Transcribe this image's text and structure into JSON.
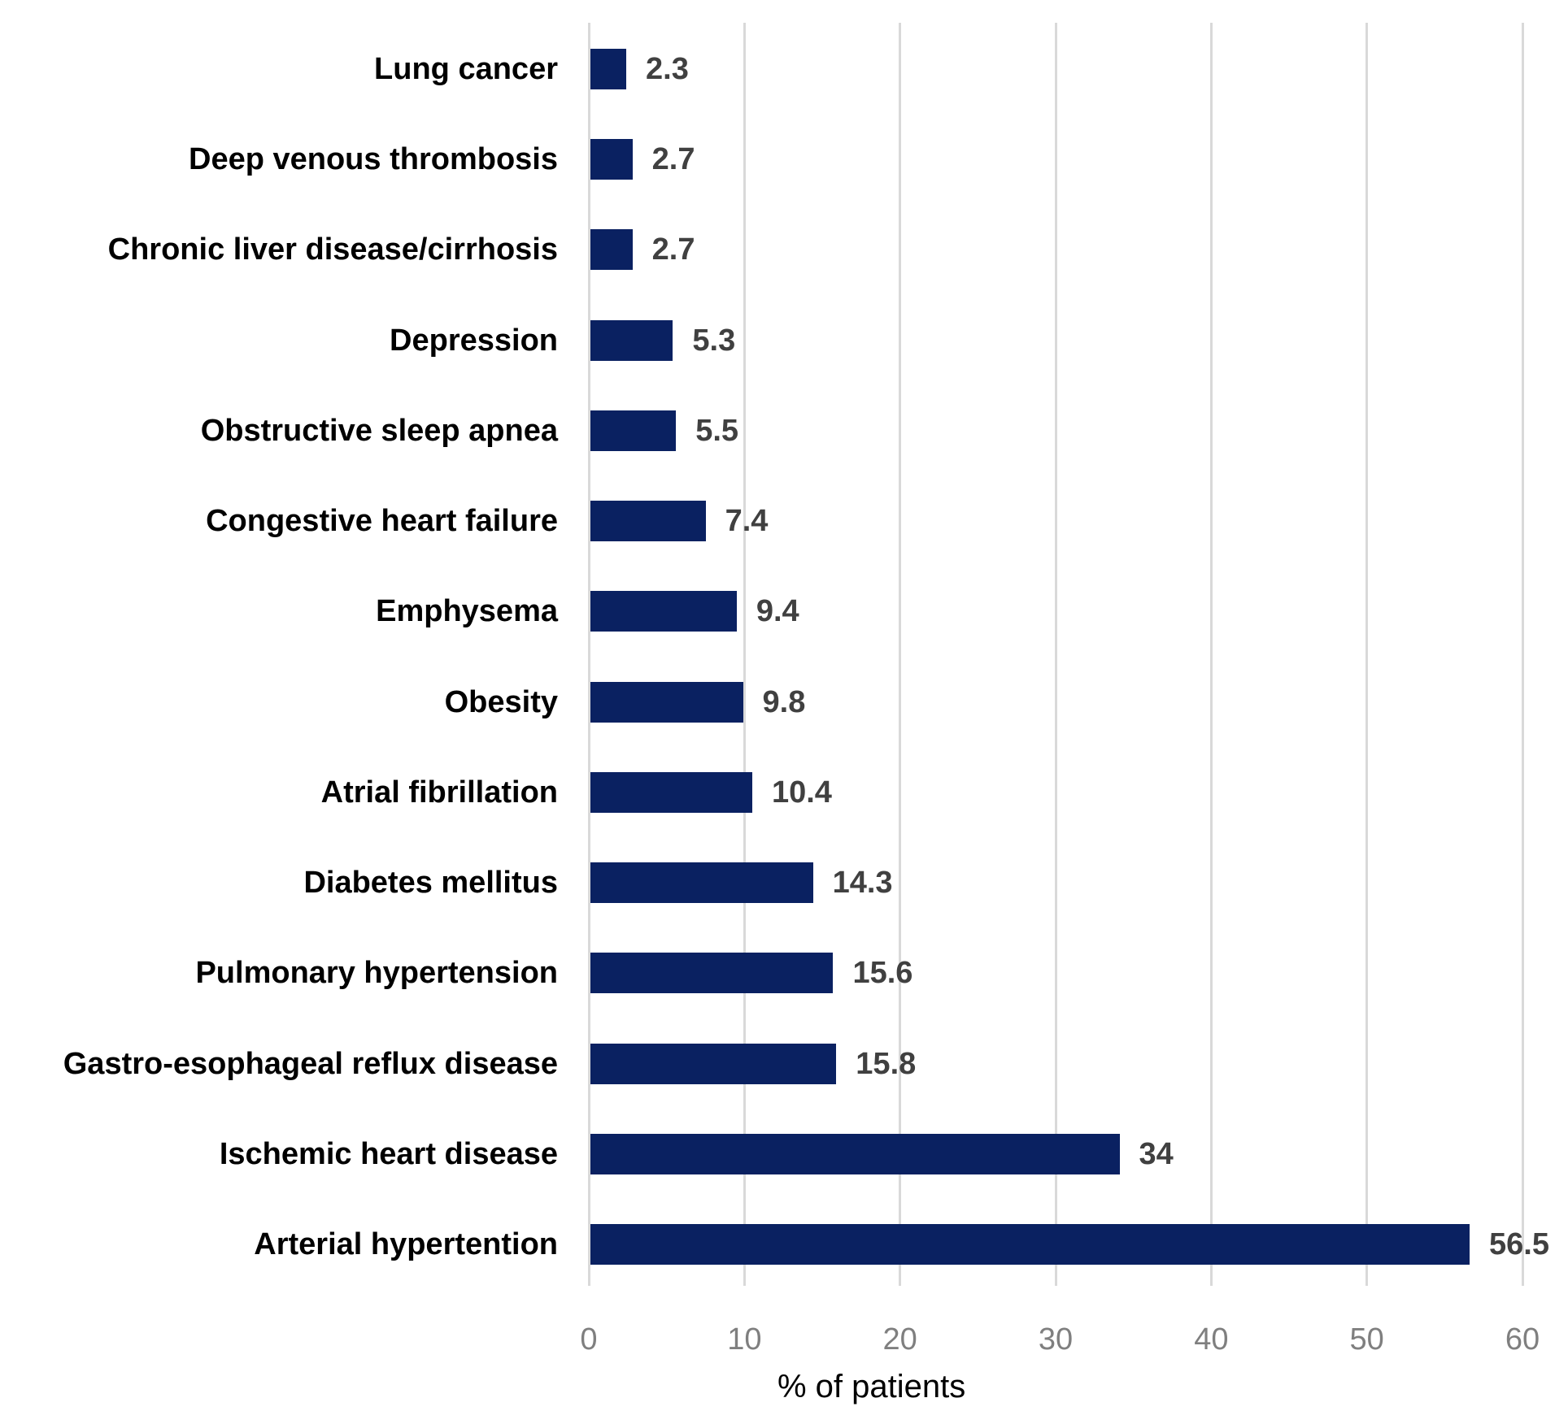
{
  "chart_data": {
    "type": "bar",
    "orientation": "horizontal",
    "title": "",
    "xlabel": "% of patients",
    "ylabel": "",
    "xlim": [
      0,
      60
    ],
    "x_ticks": [
      0,
      10,
      20,
      30,
      40,
      50,
      60
    ],
    "grid": true,
    "legend": false,
    "categories": [
      "Lung cancer",
      "Deep venous thrombosis",
      "Chronic liver disease/cirrhosis",
      "Depression",
      "Obstructive sleep apnea",
      "Congestive heart failure",
      "Emphysema",
      "Obesity",
      "Atrial fibrillation",
      "Diabetes mellitus",
      "Pulmonary hypertension",
      "Gastro-esophageal reflux disease",
      "Ischemic heart disease",
      "Arterial hypertention"
    ],
    "values": [
      2.3,
      2.7,
      2.7,
      5.3,
      5.5,
      7.4,
      9.4,
      9.8,
      10.4,
      14.3,
      15.6,
      15.8,
      34,
      56.5
    ],
    "value_labels": [
      "2.3",
      "2.7",
      "2.7",
      "5.3",
      "5.5",
      "7.4",
      "9.4",
      "9.8",
      "10.4",
      "14.3",
      "15.6",
      "15.8",
      "34",
      "56.5"
    ],
    "bar_color": "#0a2161",
    "gridline_color": "#d9d9d9",
    "value_label_color": "#404040",
    "tick_label_color": "#7f7f7f",
    "category_label_color": "#000000",
    "background_color": "#ffffff"
  }
}
